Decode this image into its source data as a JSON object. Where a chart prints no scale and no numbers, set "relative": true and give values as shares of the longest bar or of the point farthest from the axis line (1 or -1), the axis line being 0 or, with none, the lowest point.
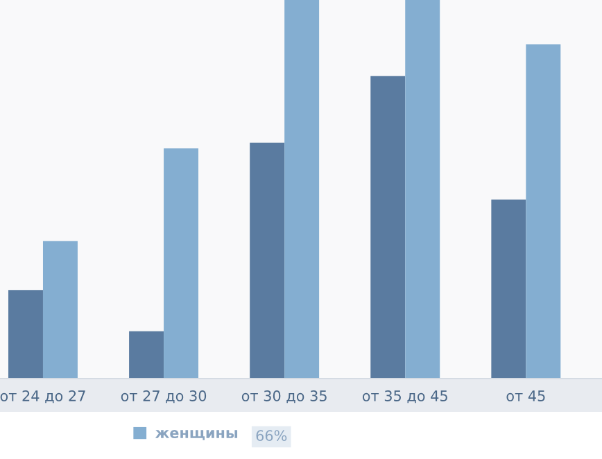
{
  "chart_data": {
    "type": "bar",
    "relative": true,
    "categories": [
      "от 24 до 27",
      "от 27 до 30",
      "от 30 до 35",
      "от 35 до 45",
      "от 45"
    ],
    "series": [
      {
        "color": "#5a7ba0",
        "values": [
          0.234,
          0.125,
          0.623,
          0.799,
          0.473
        ]
      },
      {
        "name": "женщины",
        "color": "#84aed1",
        "values": [
          0.363,
          0.608,
          1,
          1,
          0.883
        ]
      }
    ],
    "legend": "bottom",
    "annotations": [
      "66%"
    ]
  }
}
